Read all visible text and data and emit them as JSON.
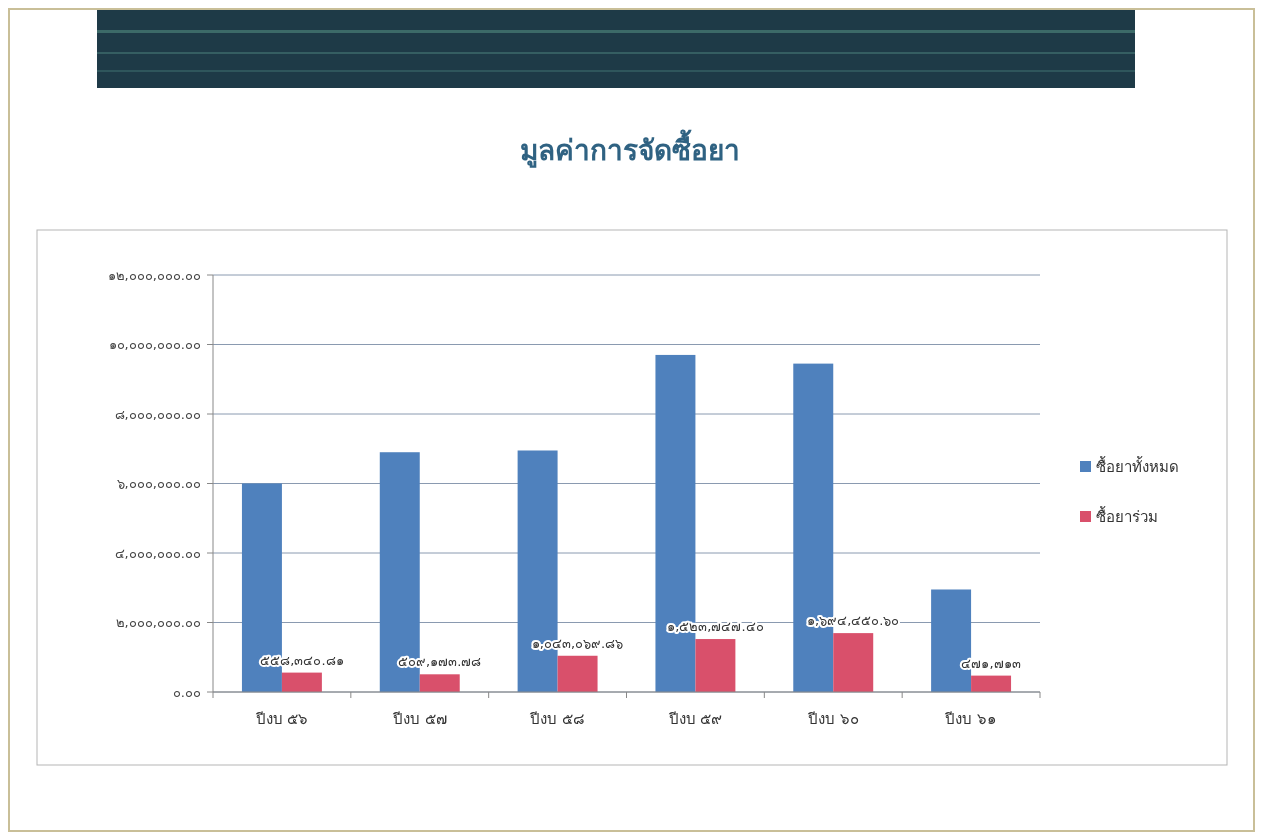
{
  "chart_data": {
    "type": "bar",
    "title": "มูลค่าการจัดซื้อยา",
    "categories": [
      "ปีงบ ๕๖",
      "ปีงบ ๕๗",
      "ปีงบ ๕๘",
      "ปีงบ ๕๙",
      "ปีงบ ๖๐",
      "ปีงบ ๖๑"
    ],
    "series": [
      {
        "name": "ซื้อยาทั้งหมด",
        "color": "#4f81bd",
        "values": [
          6000000,
          6900000,
          6950000,
          9700000,
          9450000,
          2950000
        ]
      },
      {
        "name": "ซื้อยาร่วม",
        "color": "#d9506b",
        "values": [
          558340.81,
          509173.78,
          1043069.86,
          1523747.4,
          1694450.6,
          471713
        ],
        "value_labels": [
          "๕๕๘,๓๔๐.๘๑",
          "๕๐๙,๑๗๓.๗๘",
          "๑,๐๔๓,๐๖๙.๘๖",
          "๑,๕๒๓,๗๔๗.๔๐",
          "๑,๖๙๔,๔๕๐.๖๐",
          "๔๗๑,๗๑๓"
        ]
      }
    ],
    "ylim": [
      0,
      12000000
    ],
    "yticks": [
      {
        "value": 0,
        "label": "๐.๐๐"
      },
      {
        "value": 2000000,
        "label": "๒,๐๐๐,๐๐๐.๐๐"
      },
      {
        "value": 4000000,
        "label": "๔,๐๐๐,๐๐๐.๐๐"
      },
      {
        "value": 6000000,
        "label": "๖,๐๐๐,๐๐๐.๐๐"
      },
      {
        "value": 8000000,
        "label": "๘,๐๐๐,๐๐๐.๐๐"
      },
      {
        "value": 10000000,
        "label": "๑๐,๐๐๐,๐๐๐.๐๐"
      },
      {
        "value": 12000000,
        "label": "๑๒,๐๐๐,๐๐๐.๐๐"
      }
    ],
    "grid": "y",
    "legend": "right"
  }
}
